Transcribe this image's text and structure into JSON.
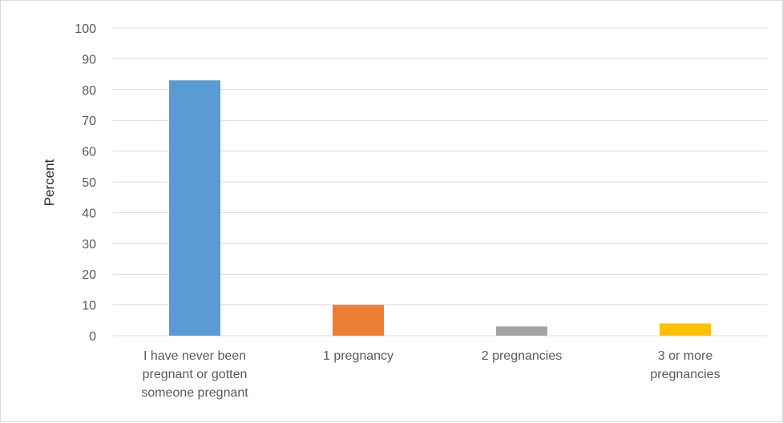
{
  "chart_data": {
    "type": "bar",
    "title": "",
    "xlabel": "",
    "ylabel": "Percent",
    "ylim": [
      0,
      100
    ],
    "ytick_step": 10,
    "grid": true,
    "legend": "none",
    "categories": [
      [
        "I have never been",
        "pregnant or gotten",
        "someone pregnant"
      ],
      [
        "1 pregnancy"
      ],
      [
        "2 pregnancies"
      ],
      [
        "3 or more",
        "pregnancies"
      ]
    ],
    "values": [
      83,
      10,
      3,
      4
    ],
    "colors": [
      "#5b9bd5",
      "#ed7d31",
      "#a5a5a5",
      "#ffc000"
    ]
  }
}
